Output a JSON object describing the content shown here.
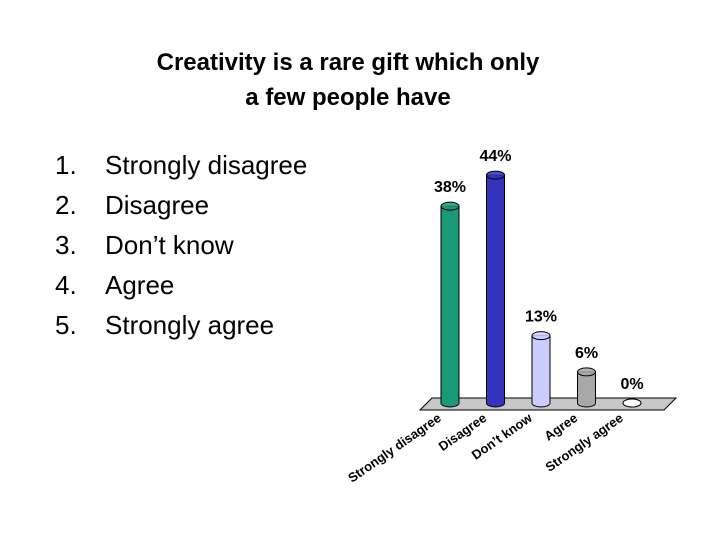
{
  "title": "Creativity is a rare gift which only a few people have",
  "list": [
    {
      "number": "1.",
      "text": "Strongly disagree"
    },
    {
      "number": "2.",
      "text": "Disagree"
    },
    {
      "number": "3.",
      "text": "Don’t know"
    },
    {
      "number": "4.",
      "text": "Agree"
    },
    {
      "number": "5.",
      "text": "Strongly agree"
    }
  ],
  "chart_data": {
    "type": "bar",
    "categories": [
      "Strongly disagree",
      "Disagree",
      "Don’t know",
      "Agree",
      "Strongly agree"
    ],
    "values": [
      38,
      44,
      13,
      6,
      0
    ],
    "value_labels": [
      "38%",
      "44%",
      "13%",
      "6%",
      "0%"
    ],
    "colors": [
      "#1a9a7a",
      "#3333bb",
      "#ccccff",
      "#a8a8a8",
      "#ffffff"
    ]
  }
}
